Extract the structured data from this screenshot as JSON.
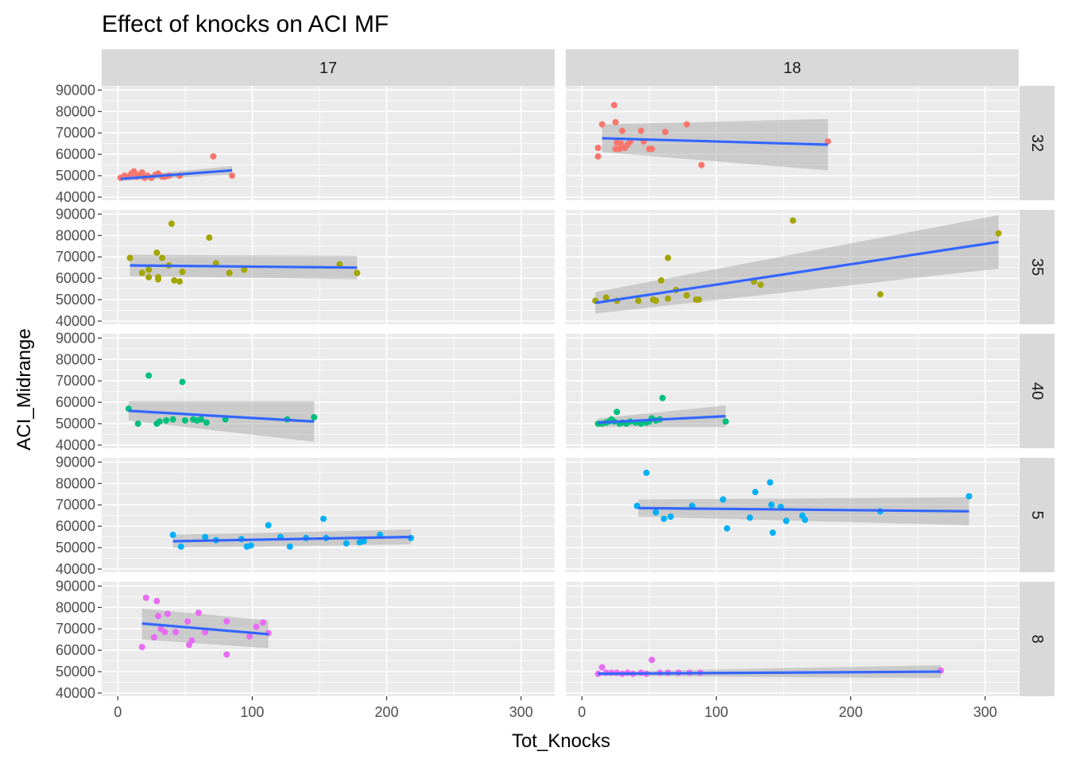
{
  "chart_data": {
    "type": "scatter",
    "title": "Effect of knocks on ACI MF",
    "xlabel": "Tot_Knocks",
    "ylabel": "ACI_Midrange",
    "xlim": [
      -12,
      325
    ],
    "ylim": [
      38500,
      92000
    ],
    "x_ticks": [
      0,
      100,
      200,
      300
    ],
    "y_ticks": [
      40000,
      50000,
      60000,
      70000,
      80000,
      90000
    ],
    "x_tick_labels": [
      "0",
      "100",
      "200",
      "300"
    ],
    "y_tick_labels": [
      "40000",
      "50000",
      "60000",
      "70000",
      "80000",
      "90000"
    ],
    "column_facets": [
      "17",
      "18"
    ],
    "row_facets": [
      "32",
      "35",
      "40",
      "5",
      "8"
    ],
    "row_colors": {
      "32": "#F8766D",
      "35": "#A3A500",
      "40": "#00BF7D",
      "5": "#00B0F6",
      "8": "#E76BF3"
    },
    "smooth_color": "#3366FF",
    "ribbon_color": "#999999",
    "grid": true,
    "legend": "none",
    "panels": [
      {
        "col": "17",
        "row": "32",
        "points": [
          [
            2,
            49000
          ],
          [
            5,
            50000
          ],
          [
            8,
            49500
          ],
          [
            10,
            51000
          ],
          [
            12,
            52000
          ],
          [
            14,
            49500
          ],
          [
            16,
            50500
          ],
          [
            18,
            51500
          ],
          [
            20,
            49000
          ],
          [
            22,
            50000
          ],
          [
            25,
            49000
          ],
          [
            28,
            50500
          ],
          [
            30,
            51000
          ],
          [
            33,
            49500
          ],
          [
            35,
            49500
          ],
          [
            38,
            50000
          ],
          [
            46,
            50000
          ],
          [
            71,
            59000
          ],
          [
            85,
            50000
          ]
        ],
        "fit": [
          [
            2,
            48500
          ],
          [
            85,
            52500
          ]
        ],
        "se": [
          [
            2,
            47500,
            49500
          ],
          [
            85,
            50500,
            54500
          ]
        ]
      },
      {
        "col": "18",
        "row": "32",
        "points": [
          [
            12,
            59000
          ],
          [
            12,
            63000
          ],
          [
            15,
            74000
          ],
          [
            24,
            83000
          ],
          [
            25,
            75000
          ],
          [
            25,
            62500
          ],
          [
            26,
            65500
          ],
          [
            28,
            62500
          ],
          [
            29,
            65000
          ],
          [
            30,
            71000
          ],
          [
            32,
            63000
          ],
          [
            34,
            64500
          ],
          [
            36,
            66000
          ],
          [
            44,
            71000
          ],
          [
            46,
            66000
          ],
          [
            50,
            62500
          ],
          [
            52,
            62500
          ],
          [
            62,
            70500
          ],
          [
            78,
            74000
          ],
          [
            89,
            55000
          ],
          [
            183,
            66000
          ]
        ],
        "fit": [
          [
            15,
            67500
          ],
          [
            183,
            64500
          ]
        ],
        "se": [
          [
            15,
            61000,
            74000
          ],
          [
            183,
            52500,
            76500
          ]
        ]
      },
      {
        "col": "17",
        "row": "35",
        "points": [
          [
            9,
            69500
          ],
          [
            18,
            62500
          ],
          [
            23,
            64000
          ],
          [
            23,
            60500
          ],
          [
            29,
            72000
          ],
          [
            30,
            59500
          ],
          [
            30,
            60500
          ],
          [
            33,
            69500
          ],
          [
            38,
            66000
          ],
          [
            40,
            85500
          ],
          [
            42,
            59000
          ],
          [
            46,
            58500
          ],
          [
            48,
            63000
          ],
          [
            68,
            79000
          ],
          [
            73,
            67000
          ],
          [
            83,
            62500
          ],
          [
            94,
            64000
          ],
          [
            165,
            66500
          ],
          [
            178,
            62500
          ]
        ],
        "fit": [
          [
            9,
            66000
          ],
          [
            178,
            65000
          ]
        ],
        "se": [
          [
            9,
            61000,
            71000
          ],
          [
            178,
            59500,
            70500
          ]
        ]
      },
      {
        "col": "18",
        "row": "35",
        "points": [
          [
            10,
            49500
          ],
          [
            18,
            51000
          ],
          [
            26,
            49500
          ],
          [
            42,
            49500
          ],
          [
            53,
            50000
          ],
          [
            55,
            49500
          ],
          [
            59,
            59000
          ],
          [
            64,
            50500
          ],
          [
            64,
            69500
          ],
          [
            70,
            54500
          ],
          [
            78,
            52000
          ],
          [
            85,
            50000
          ],
          [
            87,
            50000
          ],
          [
            128,
            58500
          ],
          [
            133,
            57000
          ],
          [
            157,
            87000
          ],
          [
            222,
            52500
          ],
          [
            310,
            81000
          ]
        ],
        "fit": [
          [
            10,
            48500
          ],
          [
            310,
            77000
          ]
        ],
        "se": [
          [
            10,
            43500,
            53500
          ],
          [
            310,
            64500,
            89500
          ]
        ]
      },
      {
        "col": "17",
        "row": "40",
        "points": [
          [
            8,
            57000
          ],
          [
            15,
            50000
          ],
          [
            23,
            72500
          ],
          [
            29,
            50000
          ],
          [
            31,
            51000
          ],
          [
            36,
            51500
          ],
          [
            41,
            52000
          ],
          [
            48,
            69500
          ],
          [
            50,
            51500
          ],
          [
            56,
            52000
          ],
          [
            59,
            51500
          ],
          [
            62,
            52000
          ],
          [
            66,
            50500
          ],
          [
            80,
            52000
          ],
          [
            126,
            52000
          ],
          [
            146,
            53000
          ]
        ],
        "fit": [
          [
            8,
            56000
          ],
          [
            146,
            51000
          ]
        ],
        "se": [
          [
            8,
            51500,
            60500
          ],
          [
            146,
            41500,
            60500
          ]
        ]
      },
      {
        "col": "18",
        "row": "40",
        "points": [
          [
            12,
            50000
          ],
          [
            15,
            50000
          ],
          [
            18,
            50500
          ],
          [
            20,
            51000
          ],
          [
            22,
            52000
          ],
          [
            24,
            51000
          ],
          [
            26,
            55500
          ],
          [
            28,
            50000
          ],
          [
            30,
            50500
          ],
          [
            33,
            50000
          ],
          [
            36,
            51000
          ],
          [
            40,
            50500
          ],
          [
            44,
            50000
          ],
          [
            48,
            50500
          ],
          [
            50,
            51000
          ],
          [
            52,
            52500
          ],
          [
            55,
            51500
          ],
          [
            58,
            52000
          ],
          [
            60,
            62000
          ],
          [
            107,
            51000
          ]
        ],
        "fit": [
          [
            12,
            50500
          ],
          [
            107,
            53500
          ]
        ],
        "se": [
          [
            12,
            48500,
            52500
          ],
          [
            107,
            48500,
            58500
          ]
        ]
      },
      {
        "col": "17",
        "row": "5",
        "points": [
          [
            41,
            56000
          ],
          [
            47,
            50500
          ],
          [
            65,
            55000
          ],
          [
            73,
            53500
          ],
          [
            92,
            54000
          ],
          [
            96,
            50500
          ],
          [
            99,
            51000
          ],
          [
            112,
            60500
          ],
          [
            121,
            55000
          ],
          [
            128,
            50500
          ],
          [
            140,
            54500
          ],
          [
            153,
            63500
          ],
          [
            155,
            54500
          ],
          [
            170,
            52000
          ],
          [
            180,
            52500
          ],
          [
            183,
            53000
          ],
          [
            195,
            56000
          ],
          [
            218,
            54500
          ]
        ],
        "fit": [
          [
            41,
            53000
          ],
          [
            218,
            55000
          ]
        ],
        "se": [
          [
            41,
            50000,
            56000
          ],
          [
            218,
            51500,
            58500
          ]
        ]
      },
      {
        "col": "18",
        "row": "5",
        "points": [
          [
            41,
            69500
          ],
          [
            48,
            85000
          ],
          [
            55,
            66500
          ],
          [
            61,
            63500
          ],
          [
            66,
            64500
          ],
          [
            82,
            69500
          ],
          [
            105,
            72500
          ],
          [
            108,
            59000
          ],
          [
            125,
            64000
          ],
          [
            129,
            76000
          ],
          [
            140,
            80500
          ],
          [
            141,
            70000
          ],
          [
            142,
            57000
          ],
          [
            148,
            69000
          ],
          [
            152,
            62500
          ],
          [
            164,
            65000
          ],
          [
            166,
            63000
          ],
          [
            222,
            67000
          ],
          [
            288,
            74000
          ]
        ],
        "fit": [
          [
            42,
            68500
          ],
          [
            288,
            67000
          ]
        ],
        "se": [
          [
            42,
            64500,
            72500
          ],
          [
            288,
            60500,
            73500
          ]
        ]
      },
      {
        "col": "17",
        "row": "8",
        "points": [
          [
            18,
            61500
          ],
          [
            21,
            84500
          ],
          [
            27,
            66000
          ],
          [
            29,
            83000
          ],
          [
            30,
            76000
          ],
          [
            32,
            70000
          ],
          [
            35,
            68500
          ],
          [
            37,
            77000
          ],
          [
            43,
            68500
          ],
          [
            52,
            73500
          ],
          [
            53,
            62500
          ],
          [
            55,
            64500
          ],
          [
            60,
            77500
          ],
          [
            65,
            68500
          ],
          [
            81,
            73500
          ],
          [
            81,
            58000
          ],
          [
            98,
            66500
          ],
          [
            103,
            71000
          ],
          [
            108,
            73000
          ],
          [
            112,
            68000
          ]
        ],
        "fit": [
          [
            18,
            72500
          ],
          [
            112,
            67500
          ]
        ],
        "se": [
          [
            18,
            65000,
            79500
          ],
          [
            112,
            61000,
            74000
          ]
        ]
      },
      {
        "col": "18",
        "row": "8",
        "points": [
          [
            12,
            49000
          ],
          [
            15,
            52000
          ],
          [
            18,
            49500
          ],
          [
            22,
            49500
          ],
          [
            26,
            49500
          ],
          [
            30,
            49000
          ],
          [
            34,
            49500
          ],
          [
            38,
            49000
          ],
          [
            44,
            49500
          ],
          [
            48,
            49000
          ],
          [
            52,
            55500
          ],
          [
            58,
            49500
          ],
          [
            64,
            49500
          ],
          [
            72,
            49500
          ],
          [
            80,
            49500
          ],
          [
            88,
            49500
          ],
          [
            267,
            50500
          ]
        ],
        "fit": [
          [
            12,
            49000
          ],
          [
            267,
            50000
          ]
        ],
        "se": [
          [
            12,
            48000,
            50000
          ],
          [
            267,
            47000,
            53000
          ]
        ]
      }
    ]
  }
}
